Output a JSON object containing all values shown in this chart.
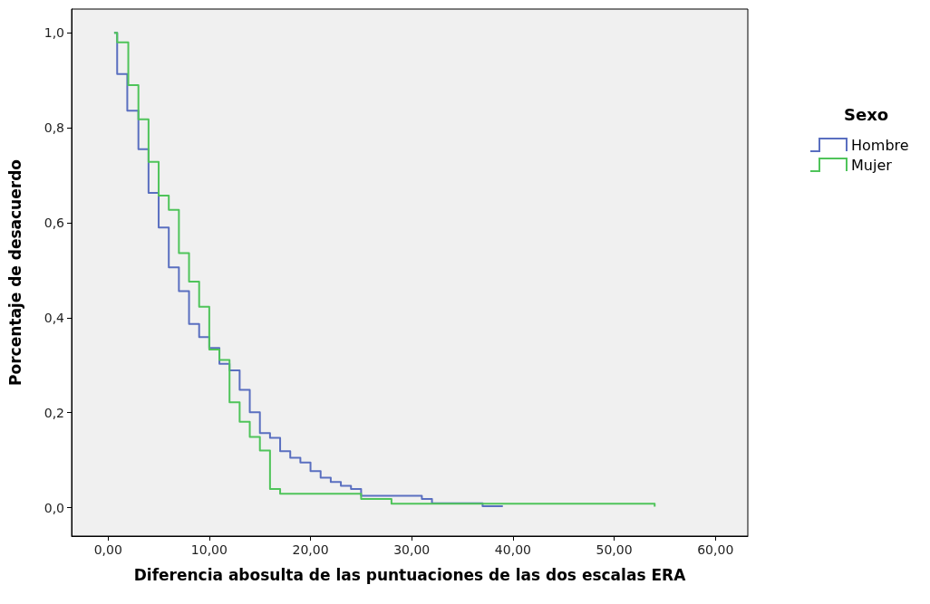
{
  "chart_data": {
    "type": "step",
    "xlabel": "Diferencia abosulta de las puntuaciones de las dos escalas ERA",
    "ylabel": "Porcentaje de desacuerdo",
    "legend_title": "Sexo",
    "legend": "right",
    "grid": false,
    "marker": "none",
    "xlim": [
      -3.6,
      63.2
    ],
    "ylim": [
      -0.06,
      1.05
    ],
    "xticks": [
      {
        "value": 0,
        "label": "0,00"
      },
      {
        "value": 10,
        "label": "10,00"
      },
      {
        "value": 20,
        "label": "20,00"
      },
      {
        "value": 30,
        "label": "30,00"
      },
      {
        "value": 40,
        "label": "40,00"
      },
      {
        "value": 50,
        "label": "50,00"
      },
      {
        "value": 60,
        "label": "60,00"
      }
    ],
    "yticks": [
      {
        "value": 0,
        "label": "0,0"
      },
      {
        "value": 0.2,
        "label": "0,2"
      },
      {
        "value": 0.4,
        "label": "0,4"
      },
      {
        "value": 0.6,
        "label": "0,6"
      },
      {
        "value": 0.8,
        "label": "0,8"
      },
      {
        "value": 1,
        "label": "1,0"
      }
    ],
    "series": [
      {
        "name": "Hombre",
        "color": "#5a6fc0",
        "x": [
          0.6,
          0.9,
          1.9,
          3,
          4,
          5,
          6,
          7,
          8,
          9,
          10,
          11,
          12,
          13,
          14,
          15,
          16,
          17,
          18,
          19,
          20,
          21,
          22,
          23,
          24,
          25,
          31,
          32,
          37,
          39
        ],
        "values": [
          1,
          0.913,
          0.836,
          0.755,
          0.663,
          0.59,
          0.506,
          0.456,
          0.387,
          0.359,
          0.336,
          0.303,
          0.289,
          0.248,
          0.201,
          0.157,
          0.147,
          0.119,
          0.105,
          0.095,
          0.077,
          0.063,
          0.054,
          0.046,
          0.039,
          0.025,
          0.018,
          0.009,
          0.003,
          0.003
        ]
      },
      {
        "name": "Mujer",
        "color": "#4fc45a",
        "x": [
          0.6,
          0.9,
          2,
          3,
          4,
          5,
          6,
          7,
          8,
          9,
          10,
          11,
          12,
          13,
          14,
          15,
          16,
          17,
          25,
          28,
          54
        ],
        "values": [
          1,
          0.98,
          0.89,
          0.818,
          0.728,
          0.657,
          0.627,
          0.536,
          0.476,
          0.423,
          0.333,
          0.311,
          0.222,
          0.181,
          0.149,
          0.12,
          0.039,
          0.029,
          0.018,
          0.008,
          0.002
        ]
      }
    ]
  }
}
